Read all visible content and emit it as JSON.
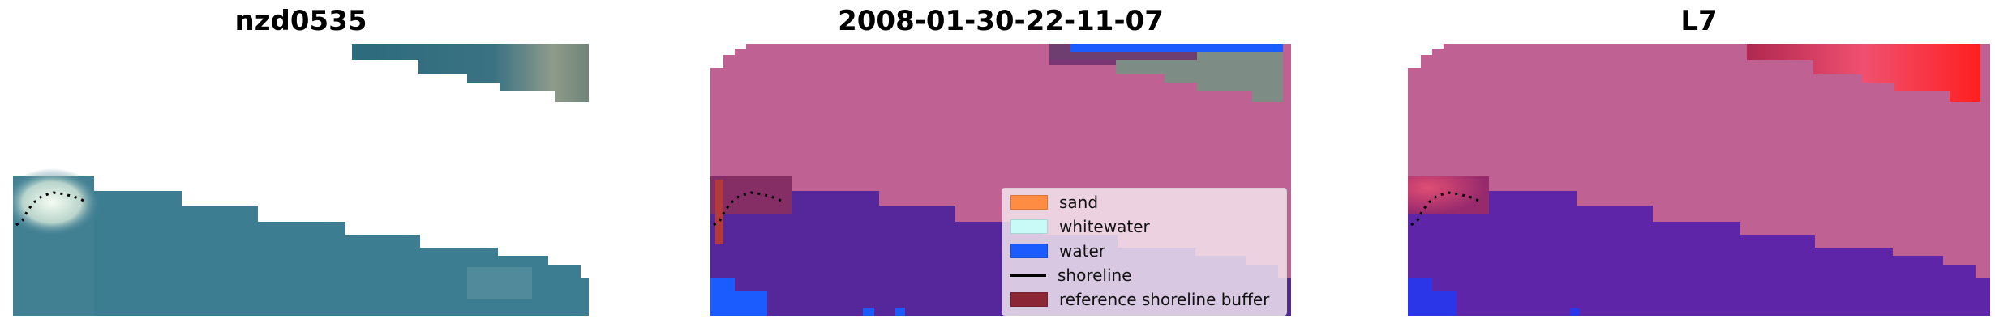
{
  "panels": [
    {
      "title": "nzd0535"
    },
    {
      "title": "2008-01-30-22-11-07"
    },
    {
      "title": "L7"
    }
  ],
  "legend": {
    "items": [
      {
        "label": "sand",
        "color": "#ff8c42",
        "kind": "patch"
      },
      {
        "label": "whitewater",
        "color": "#c8faf7",
        "kind": "patch"
      },
      {
        "label": "water",
        "color": "#1a5cff",
        "kind": "patch"
      },
      {
        "label": "shoreline",
        "color": "#000000",
        "kind": "line"
      },
      {
        "label": "reference shoreline buffer",
        "color": "#8b2635",
        "kind": "patch"
      }
    ]
  },
  "colors": {
    "sea": "#3d7d92",
    "land_overlay": "#bf6293",
    "water_class": "#55279a",
    "water_blue": "#1a5cff",
    "probability_red": "#ff2a2a"
  }
}
